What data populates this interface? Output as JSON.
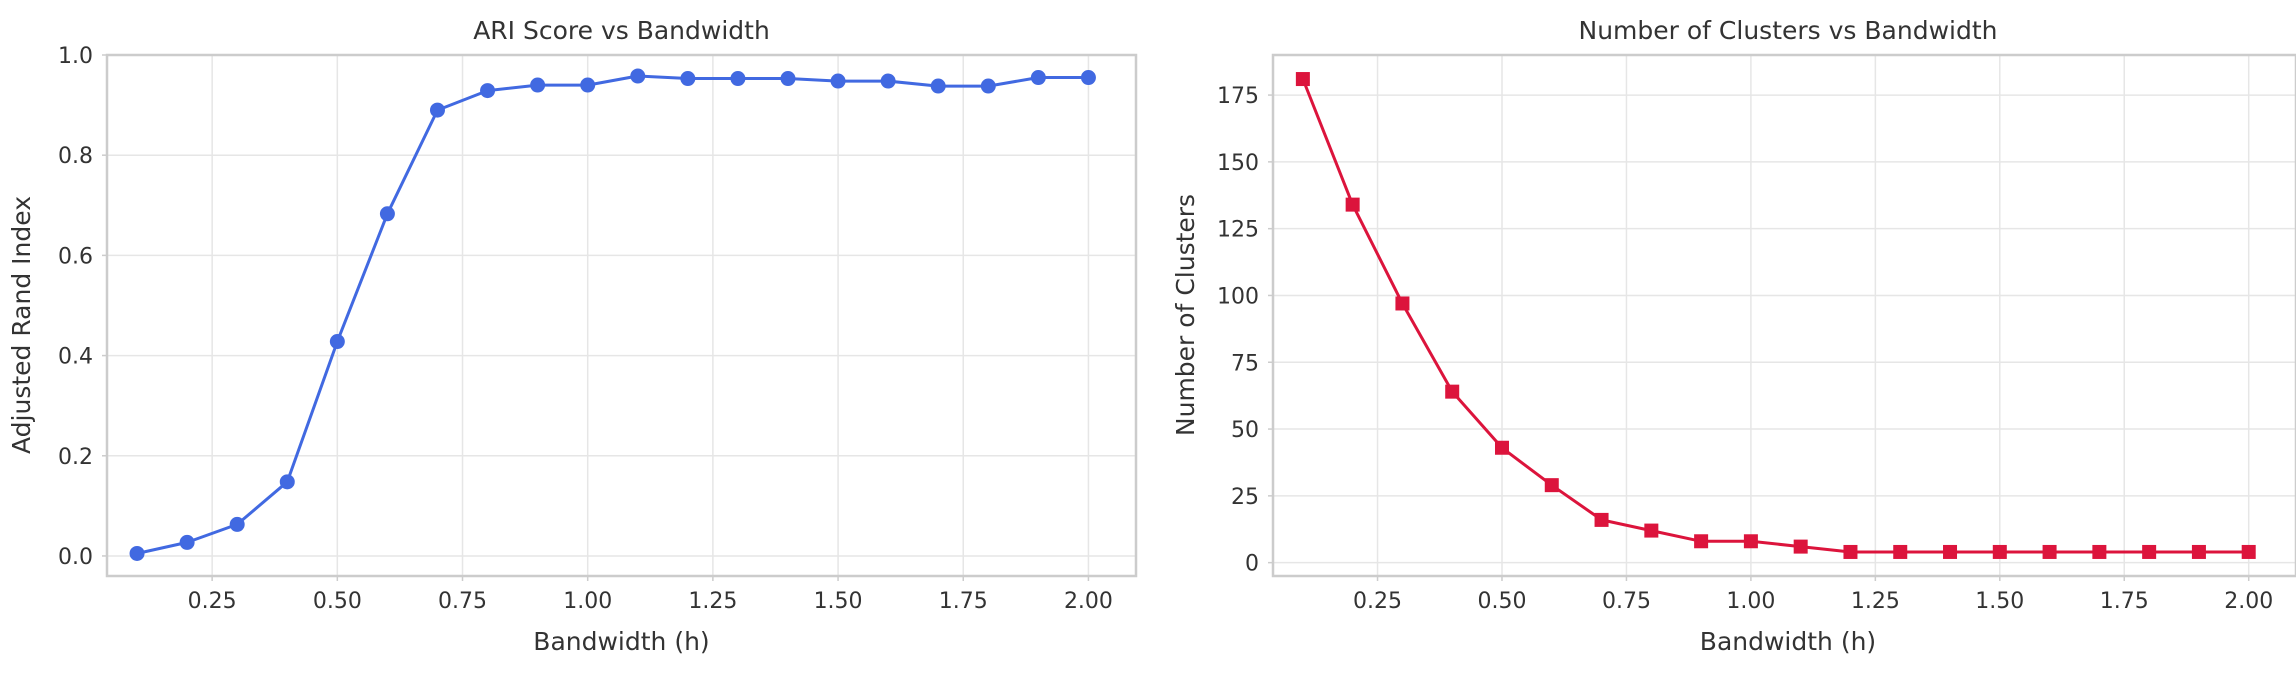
{
  "chart_data": [
    {
      "type": "line",
      "title": "ARI Score vs Bandwidth",
      "xlabel": "Bandwidth (h)",
      "ylabel": "Adjusted Rand Index",
      "xlim": [
        0.04,
        2.095
      ],
      "ylim": [
        -0.04,
        1.0
      ],
      "xticks": [
        0.25,
        0.5,
        0.75,
        1.0,
        1.25,
        1.5,
        1.75,
        2.0
      ],
      "xtick_labels": [
        "0.25",
        "0.50",
        "0.75",
        "1.00",
        "1.25",
        "1.50",
        "1.75",
        "2.00"
      ],
      "yticks": [
        0.0,
        0.2,
        0.4,
        0.6,
        0.8,
        1.0
      ],
      "ytick_labels": [
        "0.0",
        "0.2",
        "0.4",
        "0.6",
        "0.8",
        "1.0"
      ],
      "grid": true,
      "marker": "circle",
      "color": "#4169E1",
      "series": [
        {
          "x": [
            0.1,
            0.2,
            0.3,
            0.4,
            0.5,
            0.6,
            0.7,
            0.8,
            0.9,
            1.0,
            1.1,
            1.2,
            1.3,
            1.4,
            1.5,
            1.6,
            1.7,
            1.8,
            1.9,
            2.0
          ],
          "values": [
            0.005,
            0.027,
            0.063,
            0.148,
            0.428,
            0.683,
            0.89,
            0.929,
            0.94,
            0.94,
            0.958,
            0.953,
            0.953,
            0.953,
            0.948,
            0.948,
            0.938,
            0.938,
            0.955,
            0.955
          ]
        }
      ]
    },
    {
      "type": "line",
      "title": "Number of Clusters vs Bandwidth",
      "xlabel": "Bandwidth (h)",
      "ylabel": "Number of Clusters",
      "xlim": [
        0.04,
        2.095
      ],
      "ylim": [
        -5,
        190
      ],
      "xticks": [
        0.25,
        0.5,
        0.75,
        1.0,
        1.25,
        1.5,
        1.75,
        2.0
      ],
      "xtick_labels": [
        "0.25",
        "0.50",
        "0.75",
        "1.00",
        "1.25",
        "1.50",
        "1.75",
        "2.00"
      ],
      "yticks": [
        0,
        25,
        50,
        75,
        100,
        125,
        150,
        175
      ],
      "ytick_labels": [
        "0",
        "25",
        "50",
        "75",
        "100",
        "125",
        "150",
        "175"
      ],
      "grid": true,
      "marker": "square",
      "color": "#DC143C",
      "series": [
        {
          "x": [
            0.1,
            0.2,
            0.3,
            0.4,
            0.5,
            0.6,
            0.7,
            0.8,
            0.9,
            1.0,
            1.1,
            1.2,
            1.3,
            1.4,
            1.5,
            1.6,
            1.7,
            1.8,
            1.9,
            2.0
          ],
          "values": [
            181,
            134,
            97,
            64,
            43,
            29,
            16,
            12,
            8,
            8,
            6,
            4,
            4,
            4,
            4,
            4,
            4,
            4,
            4,
            4
          ]
        }
      ]
    }
  ]
}
